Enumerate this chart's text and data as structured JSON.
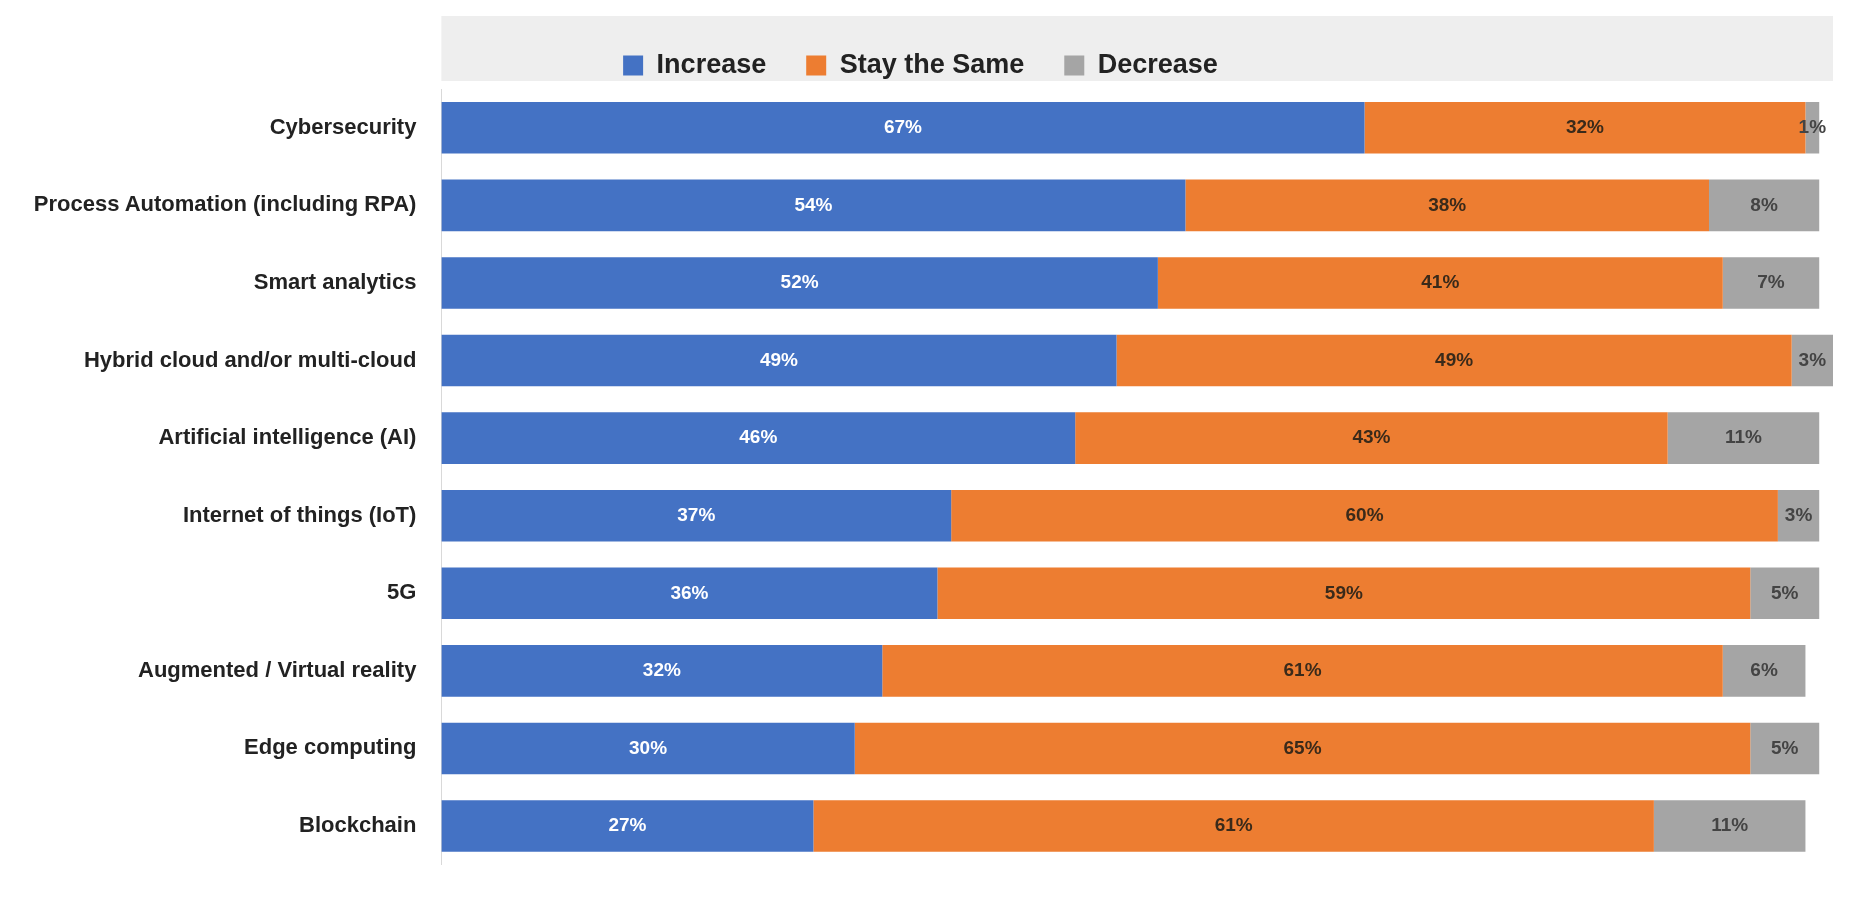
{
  "chart_data": {
    "type": "bar",
    "orientation": "horizontal",
    "stacked": true,
    "legend": "top",
    "grid": false,
    "categories": [
      "Cybersecurity",
      "Process Automation (including RPA)",
      "Smart analytics",
      "Hybrid cloud and/or multi-cloud",
      "Artificial intelligence (AI)",
      "Internet of things (IoT)",
      "5G",
      "Augmented / Virtual reality",
      "Edge computing",
      "Blockchain"
    ],
    "series": [
      {
        "name": "Increase",
        "color": "#4472c4",
        "values": [
          67,
          54,
          52,
          49,
          46,
          37,
          36,
          32,
          30,
          27
        ],
        "value_labels": [
          "67%",
          "54%",
          "52%",
          "49%",
          "46%",
          "37%",
          "36%",
          "32%",
          "30%",
          "27%"
        ]
      },
      {
        "name": "Stay the Same",
        "color": "#ed7d31",
        "values": [
          32,
          38,
          41,
          49,
          43,
          60,
          59,
          61,
          65,
          61
        ],
        "value_labels": [
          "32%",
          "38%",
          "41%",
          "49%",
          "43%",
          "60%",
          "59%",
          "61%",
          "65%",
          "61%"
        ]
      },
      {
        "name": "Decrease",
        "color": "#a5a5a5",
        "values": [
          1,
          8,
          7,
          3,
          11,
          3,
          5,
          6,
          5,
          11
        ],
        "value_labels": [
          "1%",
          "8%",
          "7%",
          "3%",
          "11%",
          "3%",
          "5%",
          "6%",
          "5%",
          "11%"
        ]
      }
    ]
  }
}
